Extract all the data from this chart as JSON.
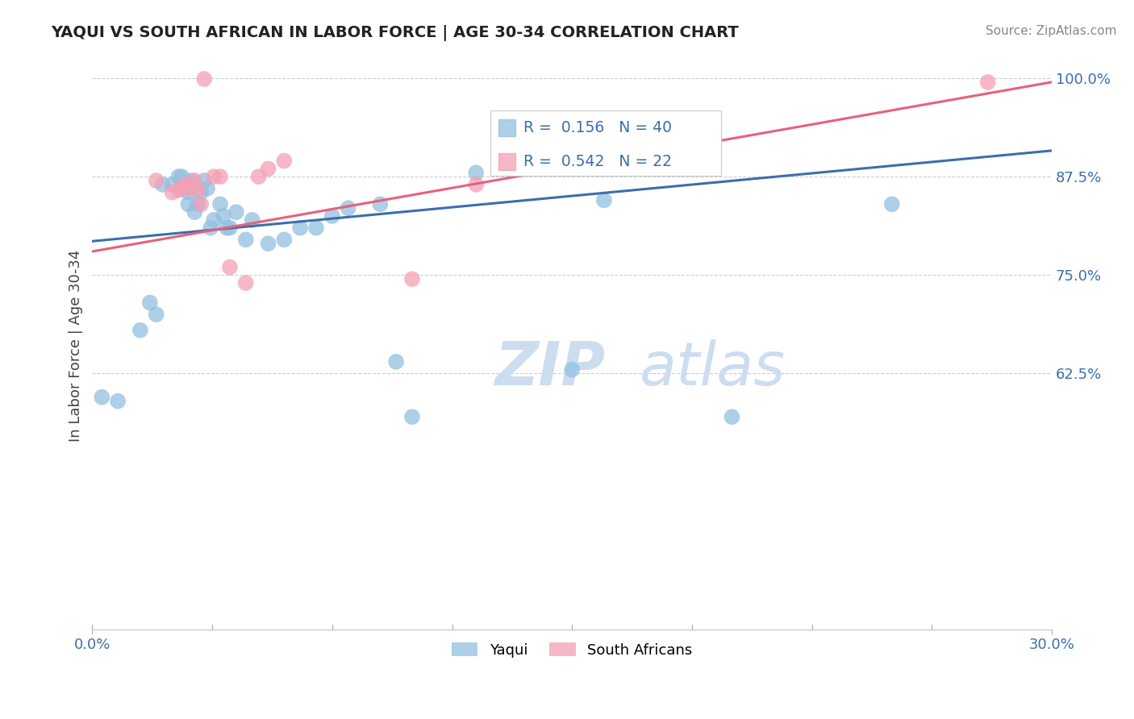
{
  "title": "YAQUI VS SOUTH AFRICAN IN LABOR FORCE | AGE 30-34 CORRELATION CHART",
  "source_text": "Source: ZipAtlas.com",
  "ylabel": "In Labor Force | Age 30-34",
  "xlim": [
    0.0,
    0.3
  ],
  "ylim": [
    0.3,
    1.02
  ],
  "yaqui_R": 0.156,
  "yaqui_N": 40,
  "sa_R": 0.542,
  "sa_N": 22,
  "title_color": "#222222",
  "source_color": "#888888",
  "yaqui_color": "#92c0e0",
  "sa_color": "#f4a0b5",
  "yaqui_line_color": "#3a6fac",
  "sa_line_color": "#e8607a",
  "grid_color": "#cccccc",
  "legend_text_color": "#3a6fac",
  "watermark_color": "#ccddf0",
  "yaqui_x": [
    0.003,
    0.008,
    0.015,
    0.018,
    0.02,
    0.022,
    0.025,
    0.027,
    0.028,
    0.03,
    0.03,
    0.031,
    0.032,
    0.033,
    0.034,
    0.035,
    0.036,
    0.037,
    0.038,
    0.04,
    0.041,
    0.042,
    0.043,
    0.045,
    0.048,
    0.05,
    0.055,
    0.06,
    0.065,
    0.07,
    0.075,
    0.08,
    0.09,
    0.095,
    0.1,
    0.12,
    0.15,
    0.16,
    0.2,
    0.25
  ],
  "yaqui_y": [
    0.595,
    0.59,
    0.68,
    0.715,
    0.7,
    0.865,
    0.865,
    0.875,
    0.875,
    0.855,
    0.84,
    0.87,
    0.83,
    0.84,
    0.855,
    0.87,
    0.86,
    0.81,
    0.82,
    0.84,
    0.825,
    0.81,
    0.81,
    0.83,
    0.795,
    0.82,
    0.79,
    0.795,
    0.81,
    0.81,
    0.825,
    0.835,
    0.84,
    0.64,
    0.57,
    0.88,
    0.63,
    0.845,
    0.57,
    0.84
  ],
  "sa_x": [
    0.02,
    0.025,
    0.027,
    0.028,
    0.029,
    0.03,
    0.031,
    0.032,
    0.033,
    0.034,
    0.035,
    0.038,
    0.04,
    0.043,
    0.048,
    0.052,
    0.055,
    0.06,
    0.1,
    0.12,
    0.15,
    0.28
  ],
  "sa_y": [
    0.87,
    0.855,
    0.858,
    0.86,
    0.865,
    0.86,
    0.863,
    0.87,
    0.858,
    0.84,
    0.999,
    0.875,
    0.875,
    0.76,
    0.74,
    0.875,
    0.885,
    0.895,
    0.745,
    0.865,
    0.915,
    0.995
  ],
  "yline_x0": 0.0,
  "yline_x1": 0.3,
  "yline_y0": 0.793,
  "yline_y1": 0.908,
  "saline_x0": 0.0,
  "saline_x1": 0.3,
  "saline_y0": 0.78,
  "saline_y1": 0.995
}
